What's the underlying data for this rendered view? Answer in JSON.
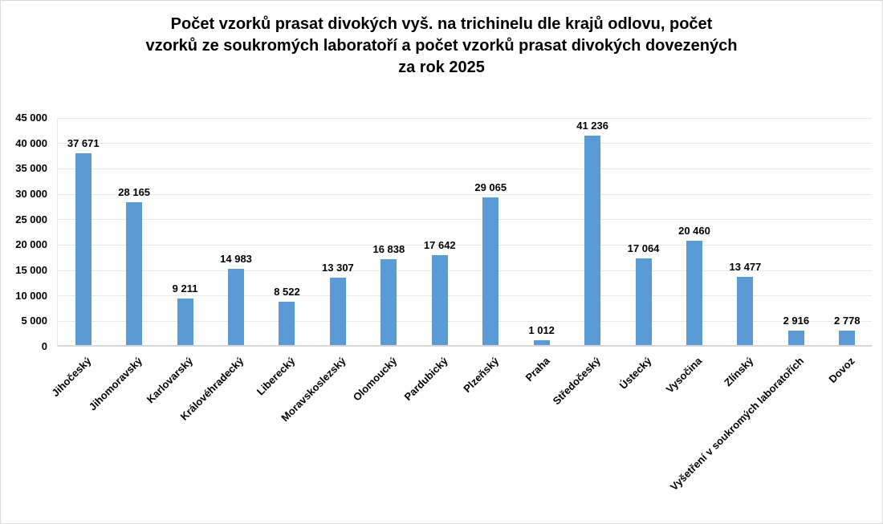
{
  "title_lines": [
    "Počet vzorků prasat divokých vyš. na trichinelu dle krajů odlovu, počet",
    "vzorků ze soukromých laboratoří a počet vzorků prasat divokých dovezených",
    "za rok 2025"
  ],
  "chart_data": {
    "type": "bar",
    "title": "Počet vzorků prasat divokých vyš. na trichinelu dle krajů odlovu, počet vzorků ze soukromých laboratoří a počet vzorků prasat divokých dovezených za rok 2025",
    "categories": [
      "Jihočeský",
      "Jihomoravský",
      "Karlovarský",
      "Královéhradecký",
      "Liberecký",
      "Moravskoslezský",
      "Olomoucký",
      "Pardubický",
      "Plzeňský",
      "Praha",
      "Středočeský",
      "Ústecký",
      "Vysočina",
      "Zlínský",
      "Vyšetření v soukromých laboratořích",
      "Dovoz"
    ],
    "values": [
      37671,
      28165,
      9211,
      14983,
      8522,
      13307,
      16838,
      17642,
      29065,
      1012,
      41236,
      17064,
      20460,
      13477,
      2916,
      2778
    ],
    "value_labels": [
      "37 671",
      "28 165",
      "9 211",
      "14 983",
      "8 522",
      "13 307",
      "16 838",
      "17 642",
      "29 065",
      "1 012",
      "41 236",
      "17 064",
      "20 460",
      "13 477",
      "2 916",
      "2 778"
    ],
    "xlabel": "",
    "ylabel": "",
    "ylim": [
      0,
      45000
    ],
    "y_tick_step": 5000,
    "y_tick_labels": [
      "0",
      "5 000",
      "10 000",
      "15 000",
      "20 000",
      "25 000",
      "30 000",
      "35 000",
      "40 000",
      "45 000"
    ],
    "grid": true,
    "legend": false,
    "bar_color": "#5B9BD5"
  },
  "colors": {
    "bar": "#5B9BD5",
    "gridline": "#E9E9E9",
    "axis_line": "#D6D6D6",
    "text": "#000000",
    "frame_border": "#D9D9D9",
    "background": "#FFFFFF"
  }
}
